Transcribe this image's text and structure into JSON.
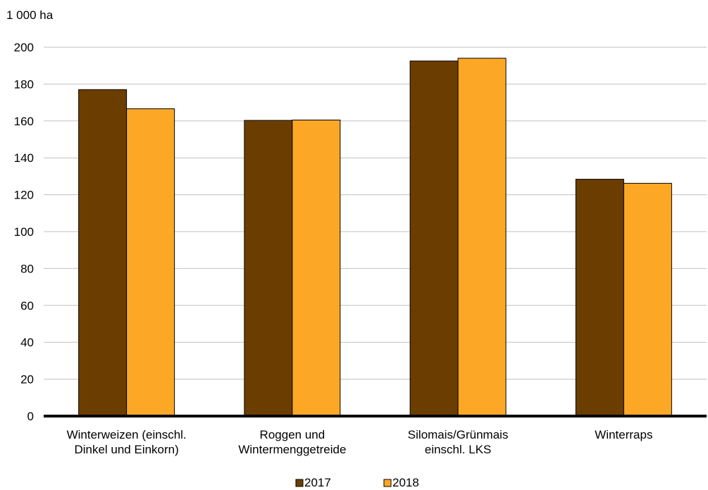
{
  "chart_data": {
    "type": "bar",
    "unit_label": "1 000 ha",
    "categories": [
      [
        "Winterweizen (einschl.",
        "Dinkel und Einkorn)"
      ],
      [
        "Roggen und",
        "Wintermenggetreide"
      ],
      [
        "Silomais/Grünmais",
        "einschl. LKS"
      ],
      [
        "Winterraps"
      ]
    ],
    "series": [
      {
        "name": "2017",
        "color": "#6b3e00",
        "values": [
          177,
          160.3,
          192.5,
          128.4
        ]
      },
      {
        "name": "2018",
        "color": "#fca826",
        "values": [
          166.6,
          160.5,
          194,
          126.2
        ]
      }
    ],
    "ylim": [
      0,
      200
    ],
    "yticks": [
      0,
      20,
      40,
      60,
      80,
      100,
      120,
      140,
      160,
      180,
      200
    ],
    "grid": true,
    "legend_position": "bottom-center"
  }
}
